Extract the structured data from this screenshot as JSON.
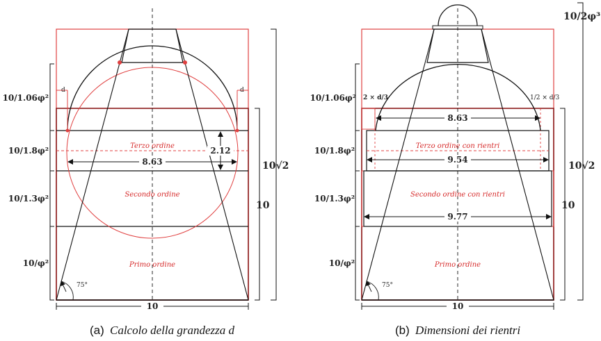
{
  "panel_a": {
    "left_labels": [
      "10/1.06φ²",
      "10/1.8φ²",
      "10/1.3φ²",
      "10/φ²"
    ],
    "right_labels": [
      "10√2",
      "10"
    ],
    "bottom_dim": "10",
    "width_dim": "8.63",
    "height_dim": "2.12",
    "d_left": "d",
    "d_right": "d",
    "angle": "75°",
    "orders": [
      "Terzo ordine",
      "Secondo ordine",
      "Primo ordine"
    ],
    "caption_prefix": "(a)",
    "caption_text": "Calcolo della grandezza d"
  },
  "panel_b": {
    "left_labels": [
      "10/1.06φ²",
      "10/1.8φ²",
      "10/1.3φ²",
      "10/φ²"
    ],
    "right_labels": [
      "10/2φ³",
      "10√2",
      "10"
    ],
    "bottom_dim": "10",
    "dims": [
      "8.63",
      "9.54",
      "9.77"
    ],
    "left_frac": "2 × d/3",
    "right_frac": "1/2 × d/3",
    "angle": "75°",
    "orders": [
      "Terzo ordine con rientri",
      "Secondo ordine con rientri",
      "Primo ordine"
    ],
    "caption_prefix": "(b)",
    "caption_text": "Dimensioni dei rientri"
  },
  "colors": {
    "red": "#e04040",
    "dark_red": "#8b1a1a",
    "black": "#111111"
  }
}
